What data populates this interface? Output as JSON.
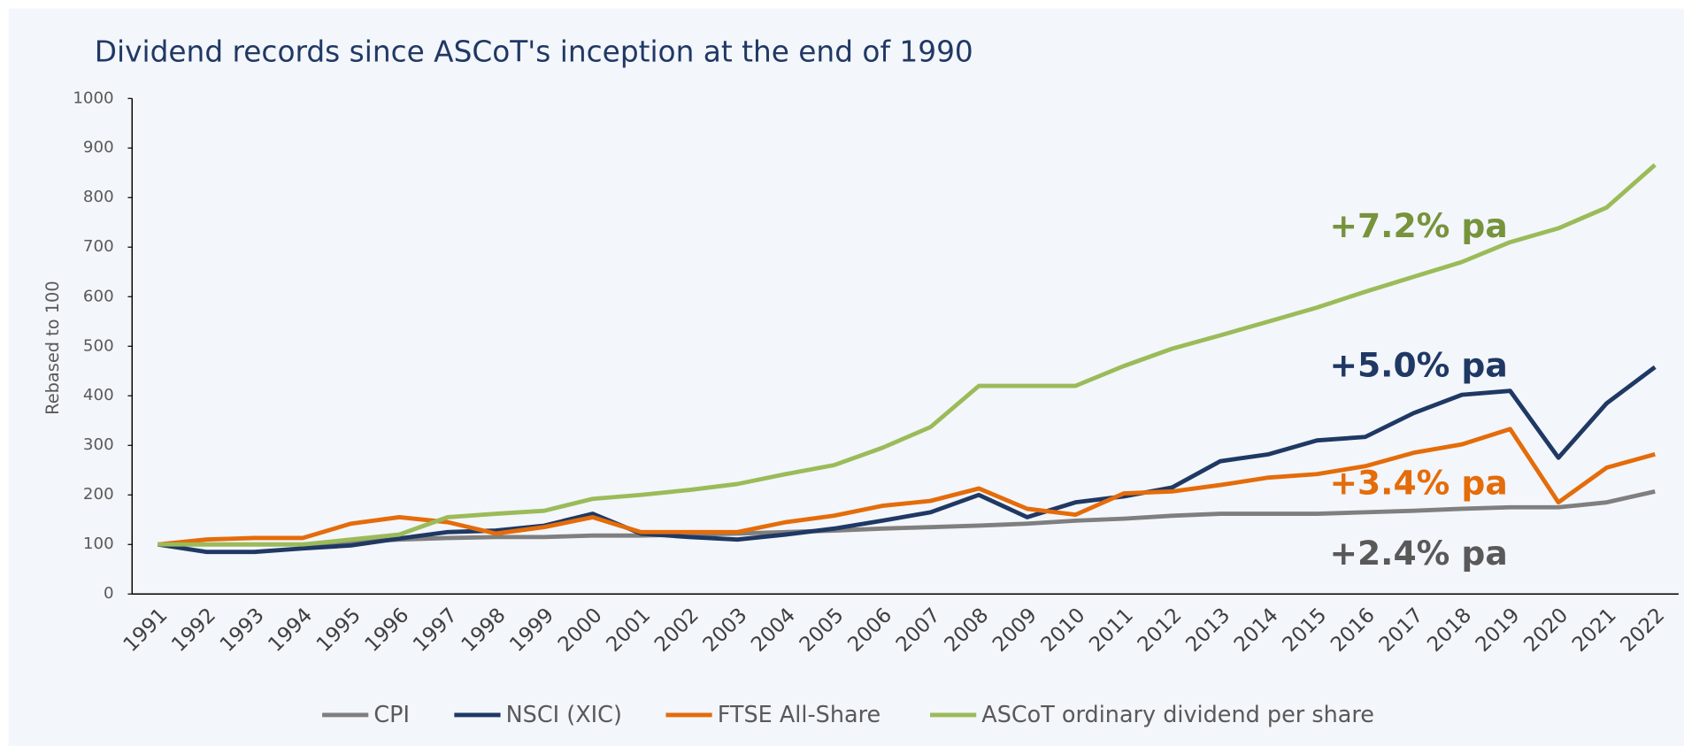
{
  "chart_data": {
    "type": "line",
    "title": "Dividend records since ASCoT's inception at the end of 1990",
    "y_label": "Rebased to 100",
    "categories": [
      "1991",
      "1992",
      "1993",
      "1994",
      "1995",
      "1996",
      "1997",
      "1998",
      "1999",
      "2000",
      "2001",
      "2002",
      "2003",
      "2004",
      "2005",
      "2006",
      "2007",
      "2008",
      "2009",
      "2010",
      "2011",
      "2012",
      "2013",
      "2014",
      "2015",
      "2016",
      "2017",
      "2018",
      "2019",
      "2020",
      "2021",
      "2022"
    ],
    "ylim": [
      0,
      1000
    ],
    "yticks": [
      0,
      100,
      200,
      300,
      400,
      500,
      600,
      700,
      800,
      900,
      1000
    ],
    "grid": false,
    "legend": "bottom",
    "series": [
      {
        "name": "CPI",
        "color": "#7f7f7f",
        "values": [
          100,
          100,
          100,
          100,
          105,
          110,
          113,
          115,
          115,
          118,
          118,
          120,
          122,
          125,
          128,
          132,
          135,
          138,
          142,
          148,
          152,
          158,
          162,
          162,
          162,
          165,
          168,
          172,
          175,
          175,
          185,
          207
        ]
      },
      {
        "name": "NSCI (XIC)",
        "color": "#1f3864",
        "values": [
          100,
          85,
          85,
          92,
          98,
          112,
          125,
          128,
          138,
          162,
          122,
          115,
          110,
          120,
          132,
          148,
          165,
          200,
          155,
          185,
          197,
          215,
          268,
          282,
          310,
          317,
          365,
          402,
          410,
          275,
          385,
          458
        ]
      },
      {
        "name": "FTSE All-Share",
        "color": "#e46c0a",
        "values": [
          100,
          110,
          113,
          113,
          142,
          155,
          145,
          122,
          135,
          155,
          125,
          125,
          125,
          145,
          158,
          178,
          188,
          213,
          172,
          160,
          203,
          207,
          220,
          235,
          242,
          258,
          285,
          302,
          333,
          185,
          255,
          282
        ]
      },
      {
        "name": "ASCoT ordinary dividend per share",
        "color": "#9bbb59",
        "values": [
          100,
          100,
          100,
          100,
          110,
          120,
          155,
          162,
          168,
          192,
          200,
          210,
          222,
          242,
          260,
          295,
          337,
          420,
          420,
          420,
          460,
          495,
          522,
          550,
          578,
          610,
          640,
          670,
          710,
          738,
          780,
          866
        ]
      }
    ],
    "annotations": [
      {
        "text": "+7.2% pa",
        "color": "#77933c"
      },
      {
        "text": "+5.0% pa",
        "color": "#1f3864"
      },
      {
        "text": "+3.4% pa",
        "color": "#e46c0a"
      },
      {
        "text": "+2.4% pa",
        "color": "#595959"
      }
    ]
  }
}
